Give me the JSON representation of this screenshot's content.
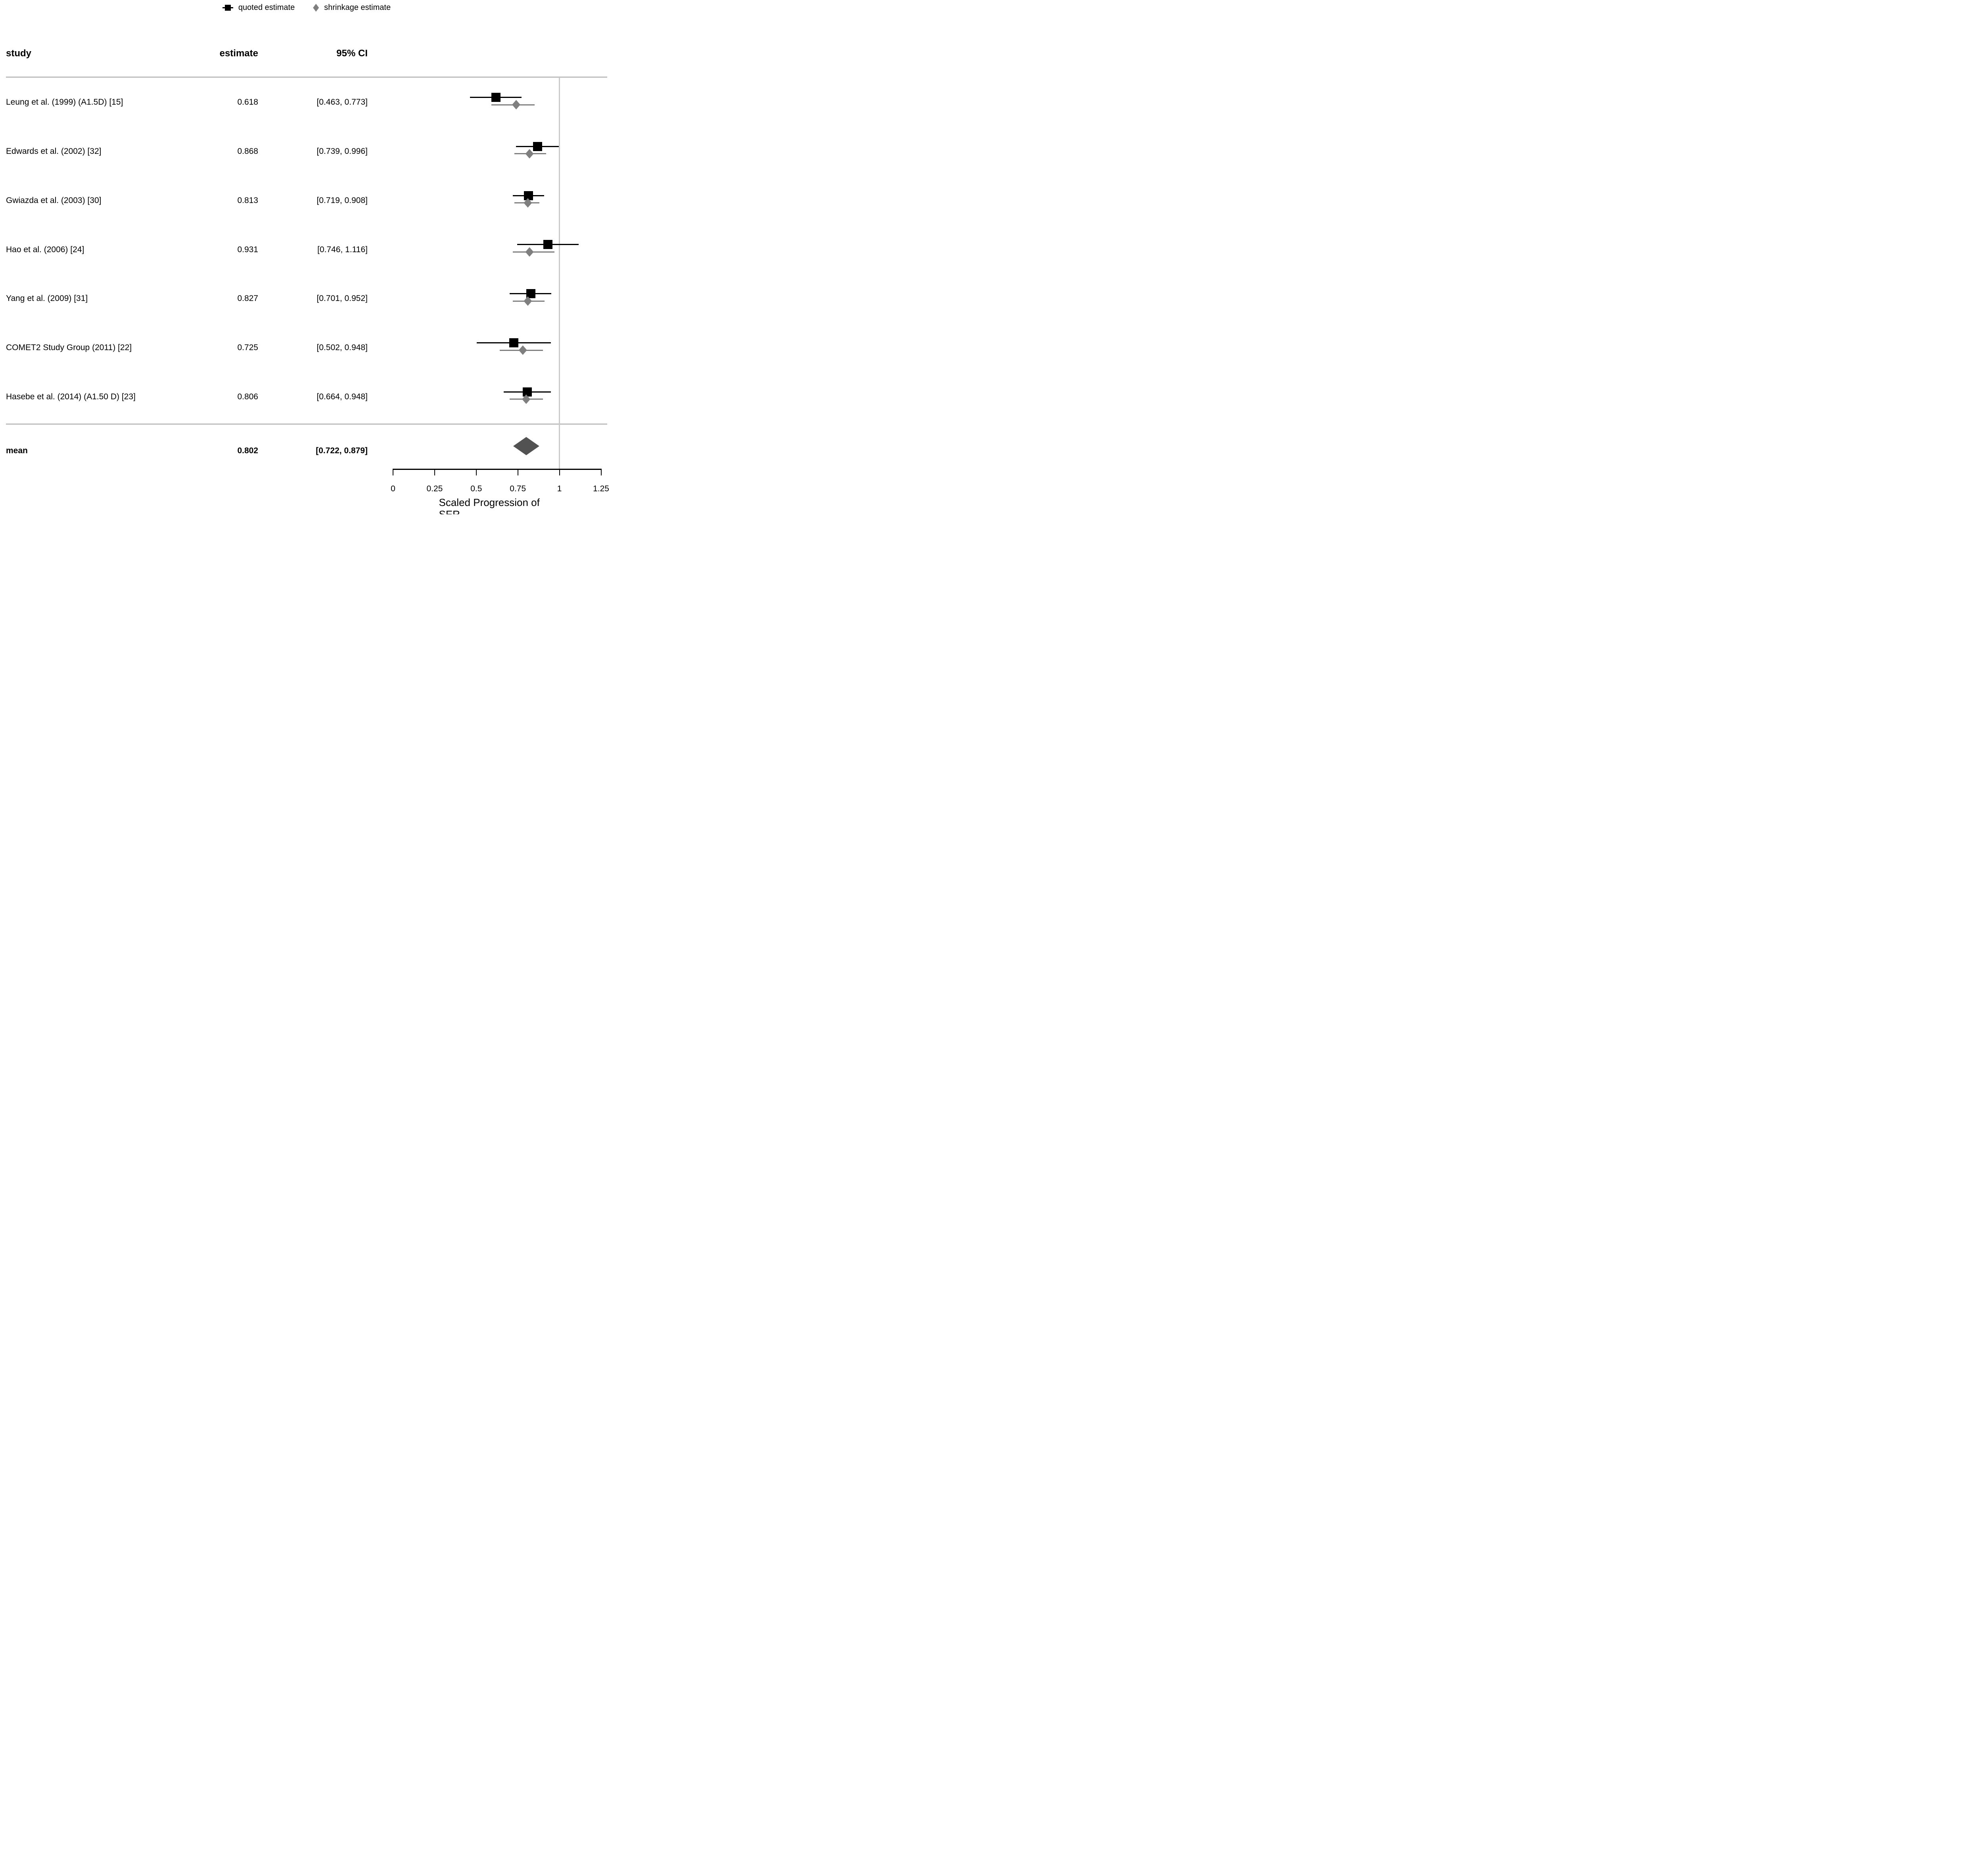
{
  "legend": {
    "quoted_label": "quoted estimate",
    "shrinkage_label": "shrinkage estimate"
  },
  "columns": {
    "study": "study",
    "estimate": "estimate",
    "ci": "95% CI"
  },
  "rows": [
    {
      "study": "Leung et al. (1999) (A1.5D) [15]",
      "estimate": "0.618",
      "ci": "[0.463, 0.773]"
    },
    {
      "study": "Edwards et al. (2002) [32]",
      "estimate": "0.868",
      "ci": "[0.739, 0.996]"
    },
    {
      "study": "Gwiazda et al. (2003) [30]",
      "estimate": "0.813",
      "ci": "[0.719, 0.908]"
    },
    {
      "study": "Hao et al. (2006) [24]",
      "estimate": "0.931",
      "ci": "[0.746, 1.116]"
    },
    {
      "study": "Yang et al. (2009) [31]",
      "estimate": "0.827",
      "ci": "[0.701, 0.952]"
    },
    {
      "study": "COMET2 Study Group (2011) [22]",
      "estimate": "0.725",
      "ci": "[0.502, 0.948]"
    },
    {
      "study": "Hasebe et al. (2014) (A1.50 D) [23]",
      "estimate": "0.806",
      "ci": "[0.664, 0.948]"
    }
  ],
  "mean_row": {
    "label": "mean",
    "estimate": "0.802",
    "ci": "[0.722, 0.879]"
  },
  "axis": {
    "tick_labels": [
      "0",
      "0.25",
      "0.5",
      "0.75",
      "1",
      "1.25"
    ],
    "title": "Scaled Progression of SER"
  },
  "colors": {
    "quoted": "#000000",
    "shrinkage": "#7f7f7f",
    "mean_diamond": "#525252",
    "reference_line": "#c9c9c9",
    "separator": "#bdbdbd"
  },
  "chart_data": {
    "type": "forest",
    "title": "",
    "xlabel": "Scaled Progression of SER",
    "xlim": [
      0,
      1.25
    ],
    "xticks": [
      0,
      0.25,
      0.5,
      0.75,
      1,
      1.25
    ],
    "reference_line": 1.0,
    "legend_position": "top-center",
    "studies": [
      "Leung et al. (1999) (A1.5D) [15]",
      "Edwards et al. (2002) [32]",
      "Gwiazda et al. (2003) [30]",
      "Hao et al. (2006) [24]",
      "Yang et al. (2009) [31]",
      "COMET2 Study Group (2011) [22]",
      "Hasebe et al. (2014) (A1.50 D) [23]"
    ],
    "series": [
      {
        "name": "quoted estimate",
        "marker": "square",
        "values": [
          {
            "est": 0.618,
            "lo": 0.463,
            "hi": 0.773
          },
          {
            "est": 0.868,
            "lo": 0.739,
            "hi": 0.996
          },
          {
            "est": 0.813,
            "lo": 0.719,
            "hi": 0.908
          },
          {
            "est": 0.931,
            "lo": 0.746,
            "hi": 1.116
          },
          {
            "est": 0.827,
            "lo": 0.701,
            "hi": 0.952
          },
          {
            "est": 0.725,
            "lo": 0.502,
            "hi": 0.948
          },
          {
            "est": 0.806,
            "lo": 0.664,
            "hi": 0.948
          }
        ]
      },
      {
        "name": "shrinkage estimate",
        "marker": "diamond",
        "values": [
          {
            "est": 0.74,
            "lo": 0.59,
            "hi": 0.85
          },
          {
            "est": 0.82,
            "lo": 0.73,
            "hi": 0.92
          },
          {
            "est": 0.81,
            "lo": 0.73,
            "hi": 0.88
          },
          {
            "est": 0.82,
            "lo": 0.72,
            "hi": 0.97
          },
          {
            "est": 0.81,
            "lo": 0.72,
            "hi": 0.91
          },
          {
            "est": 0.78,
            "lo": 0.64,
            "hi": 0.9
          },
          {
            "est": 0.8,
            "lo": 0.7,
            "hi": 0.9
          }
        ]
      }
    ],
    "mean": {
      "est": 0.802,
      "lo": 0.722,
      "hi": 0.879
    }
  }
}
